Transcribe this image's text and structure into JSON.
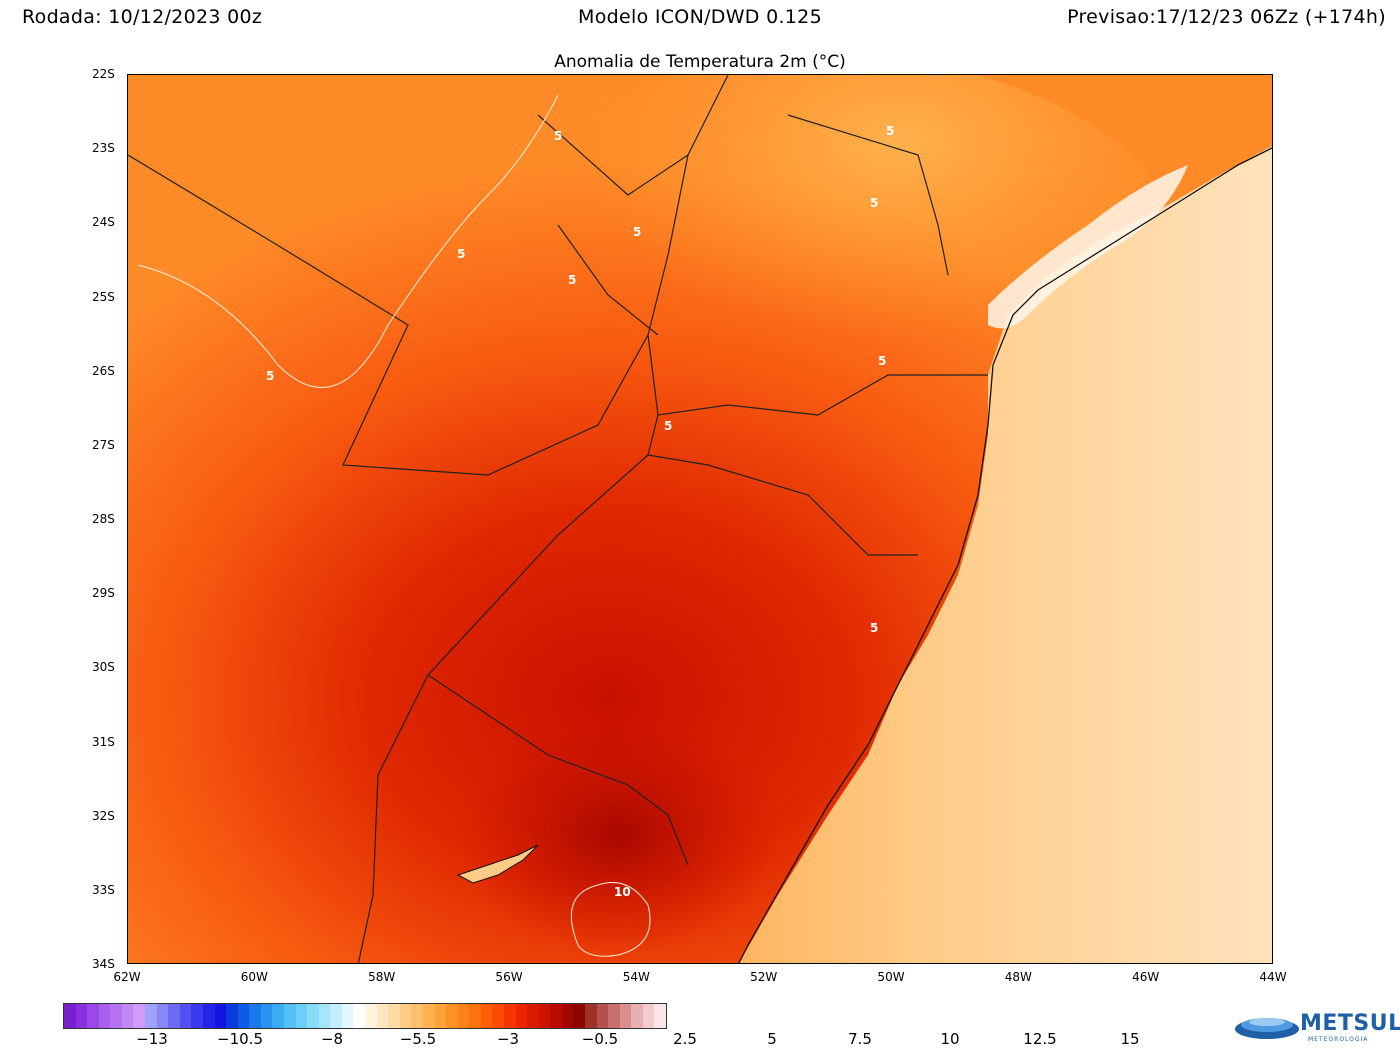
{
  "header": {
    "run": "Rodada: 10/12/2023 00z",
    "model": "Modelo ICON/DWD 0.125",
    "forecast": "Previsao:17/12/23 06Zz (+174h)"
  },
  "map": {
    "title": "Anomalia de Temperatura 2m (°C)",
    "lat_labels": [
      "22S",
      "23S",
      "24S",
      "25S",
      "26S",
      "27S",
      "28S",
      "29S",
      "30S",
      "31S",
      "32S",
      "33S",
      "34S"
    ],
    "lon_labels": [
      "62W",
      "60W",
      "58W",
      "56W",
      "54W",
      "52W",
      "50W",
      "48W",
      "46W",
      "44W"
    ],
    "extent": {
      "lon_min": -62,
      "lon_max": -44,
      "lat_min": -34,
      "lat_max": -22
    },
    "contour_labels": [
      "5",
      "5",
      "5",
      "5",
      "5",
      "5",
      "5",
      "5",
      "5",
      "5",
      "10"
    ]
  },
  "colorbar": {
    "tick_labels": [
      "-13",
      "-10.5",
      "-8",
      "-5.5",
      "-3",
      "-0.5",
      "2.5",
      "5",
      "7.5",
      "10",
      "12.5",
      "15"
    ],
    "colors": [
      "#7a1fd0",
      "#8a2ee0",
      "#9a48e8",
      "#a95eee",
      "#b672f2",
      "#c388f5",
      "#cf9df8",
      "#a2a0f8",
      "#8888f8",
      "#6c6cf6",
      "#5252f2",
      "#3a3aee",
      "#2424e8",
      "#1414e0",
      "#0a3cdc",
      "#0f5ae4",
      "#1a78ea",
      "#2894ef",
      "#3aacf2",
      "#52c0f4",
      "#6cd0f6",
      "#88dcf8",
      "#a6e6fa",
      "#c4eefb",
      "#e2f6fc",
      "#ffffff",
      "#fff4e0",
      "#ffe7c2",
      "#ffdaa3",
      "#ffcd85",
      "#ffc06a",
      "#ffb150",
      "#ffa23a",
      "#ff9226",
      "#ff8118",
      "#ff700e",
      "#ff5e08",
      "#fb4a04",
      "#f43702",
      "#ea2600",
      "#dc1a00",
      "#cc1200",
      "#b80c00",
      "#a20800",
      "#8e0600",
      "#a0302a",
      "#b55050",
      "#c87070",
      "#da9090",
      "#e8b0b0",
      "#f3cdcd",
      "#fbe6e6"
    ],
    "water_color": "#ffe7c2"
  },
  "logo": {
    "name": "METSUL",
    "sub": "METEOROLOGIA"
  }
}
